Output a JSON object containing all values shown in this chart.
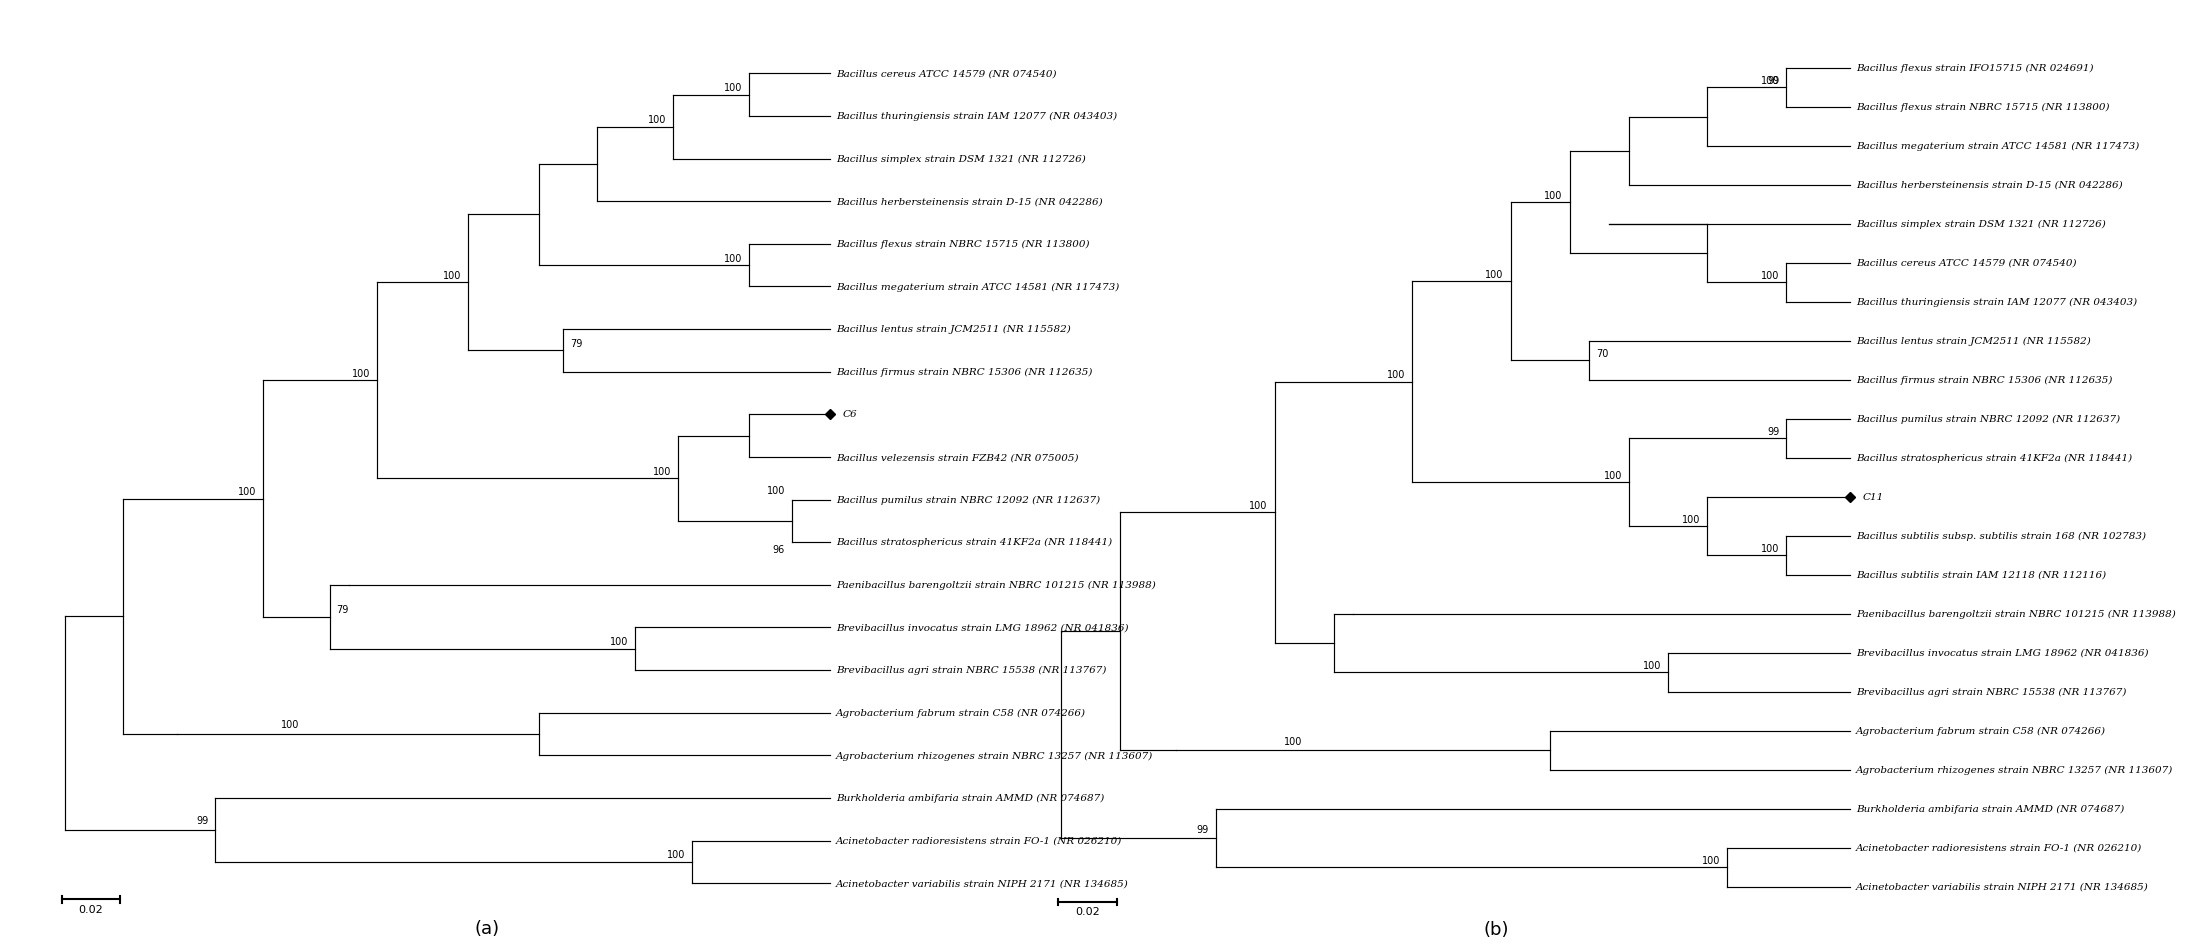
{
  "panel_a": {
    "label": "(a)",
    "taxa": [
      "Bacillus cereus ATCC 14579 (NR 074540)",
      "Bacillus thuringiensis strain IAM 12077 (NR 043403)",
      "Bacillus simplex strain DSM 1321 (NR 112726)",
      "Bacillus herbersteinensis strain D-15 (NR 042286)",
      "Bacillus flexus strain NBRC 15715 (NR 113800)",
      "Bacillus megaterium strain ATCC 14581 (NR 117473)",
      "Bacillus lentus strain JCM2511 (NR 115582)",
      "Bacillus firmus strain NBRC 15306 (NR 112635)",
      "C6",
      "Bacillus velezensis strain FZB42 (NR 075005)",
      "Bacillus pumilus strain NBRC 12092 (NR 112637)",
      "Bacillus stratosphericus strain 41KF2a (NR 118441)",
      "Paenibacillus barengoltzii strain NBRC 101215 (NR 113988)",
      "Brevibacillus invocatus strain LMG 18962 (NR 041836)",
      "Brevibacillus agri strain NBRC 15538 (NR 113767)",
      "Agrobacterium fabrum strain C58 (NR 074266)",
      "Agrobacterium rhizogenes strain NBRC 13257 (NR 113607)",
      "Burkholderia ambifaria strain AMMD (NR 074687)",
      "Acinetobacter radioresistens strain FO-1 (NR 026210)",
      "Acinetobacter variabilis strain NIPH 2171 (NR 134685)"
    ],
    "highlight_idx": 8
  },
  "panel_b": {
    "label": "(b)",
    "taxa": [
      "Bacillus flexus strain IFO15715 (NR 024691)",
      "Bacillus flexus strain NBRC 15715 (NR 113800)",
      "Bacillus megaterium strain ATCC 14581 (NR 117473)",
      "Bacillus herbersteinensis strain D-15 (NR 042286)",
      "Bacillus simplex strain DSM 1321 (NR 112726)",
      "Bacillus cereus ATCC 14579 (NR 074540)",
      "Bacillus thuringiensis strain IAM 12077 (NR 043403)",
      "Bacillus lentus strain JCM2511 (NR 115582)",
      "Bacillus firmus strain NBRC 15306 (NR 112635)",
      "Bacillus pumilus strain NBRC 12092 (NR 112637)",
      "Bacillus stratosphericus strain 41KF2a (NR 118441)",
      "C11",
      "Bacillus subtilis subsp. subtilis strain 168 (NR 102783)",
      "Bacillus subtilis strain IAM 12118 (NR 112116)",
      "Paenibacillus barengoltzii strain NBRC 101215 (NR 113988)",
      "Brevibacillus invocatus strain LMG 18962 (NR 041836)",
      "Brevibacillus agri strain NBRC 15538 (NR 113767)",
      "Agrobacterium fabrum strain C58 (NR 074266)",
      "Agrobacterium rhizogenes strain NBRC 13257 (NR 113607)",
      "Burkholderia ambifaria strain AMMD (NR 074687)",
      "Acinetobacter radioresistens strain FO-1 (NR 026210)",
      "Acinetobacter variabilis strain NIPH 2171 (NR 134685)"
    ],
    "highlight_idx": 11
  },
  "lw": 0.85,
  "lc": "#000000",
  "fs_taxa": 7.5,
  "fs_boot": 7.0,
  "fs_label": 13,
  "scale_bar_label": "0.02"
}
